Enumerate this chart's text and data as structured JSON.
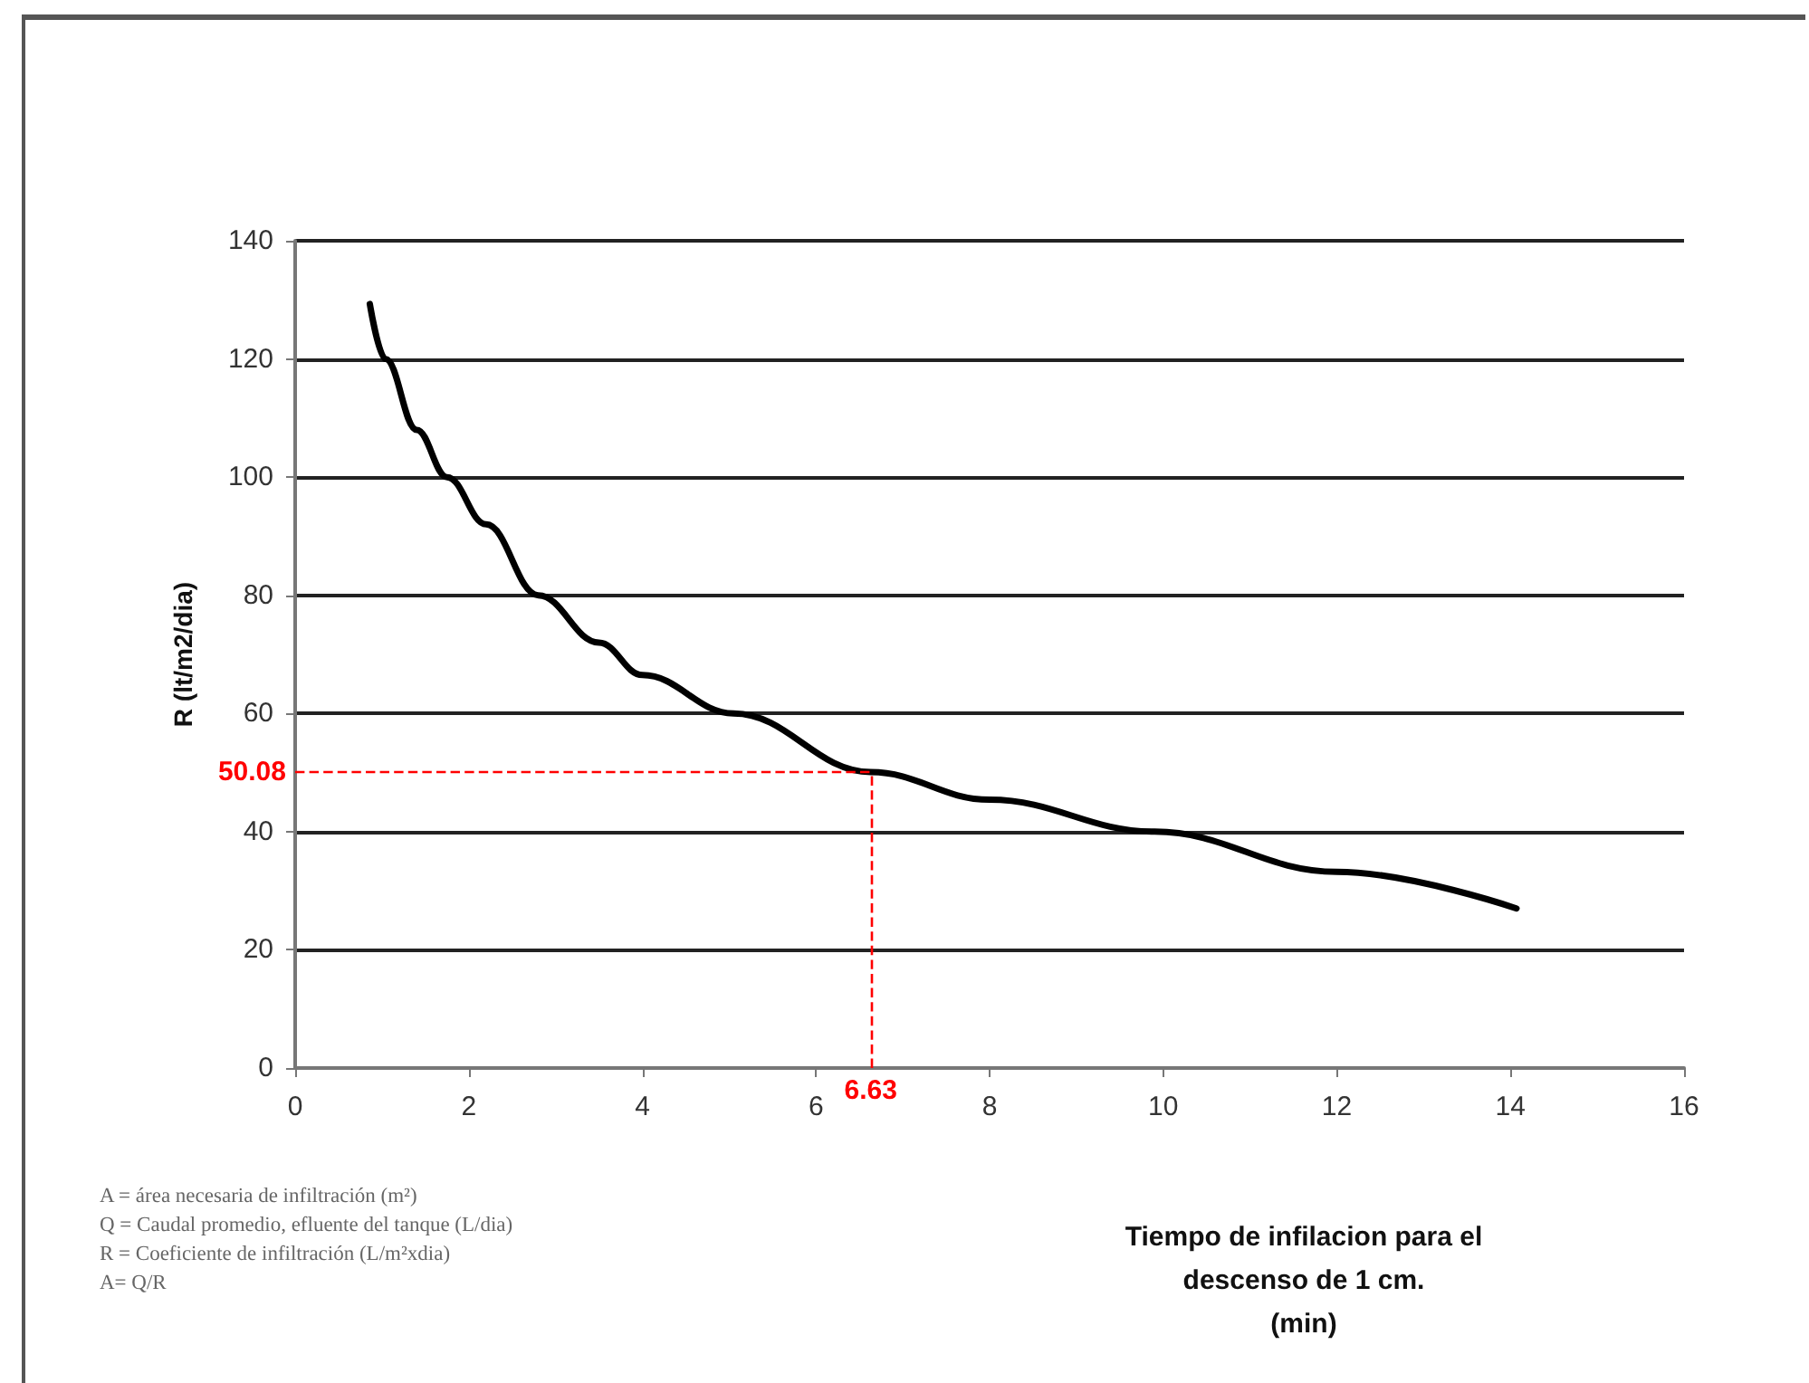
{
  "chart_data": {
    "type": "line",
    "xlabel": "Tiempo de infilacion para el\ndescenso de 1 cm.\n(min)",
    "ylabel": "R (lt/m2/dia)",
    "series": [
      {
        "color": "#000000",
        "x": [
          0.86,
          1.04,
          1.4,
          1.75,
          2.2,
          2.8,
          3.5,
          4,
          5.05,
          6.63,
          8,
          9.9,
          12,
          14.07
        ],
        "values": [
          129.3,
          120,
          108,
          100,
          92,
          80,
          72,
          66.5,
          60,
          50.08,
          45.4,
          40,
          33.2,
          27
        ]
      }
    ],
    "xlim": [
      0,
      16
    ],
    "xticks": [
      0,
      2,
      4,
      6,
      8,
      10,
      12,
      14,
      16
    ],
    "ylim": [
      0,
      140
    ],
    "yticks": [
      0,
      20,
      40,
      60,
      80,
      100,
      120,
      140
    ],
    "grid": "y",
    "marker": "none",
    "line_style": "solid",
    "ref_lines": [
      {
        "axis": "y",
        "value": 50.08,
        "label": "50.08",
        "color": "#ff0000",
        "line_style": "dashed"
      },
      {
        "axis": "x",
        "value": 6.63,
        "label": "6.63",
        "color": "#ff0000",
        "line_style": "dashed"
      }
    ],
    "annotations": [
      "A = área necesaria de infiltración (m²)",
      "Q = Caudal promedio, efluente del tanque (L/dia)",
      "R = Coeficiente de infiltración (L/m²xdia)",
      "A= Q/R"
    ]
  }
}
